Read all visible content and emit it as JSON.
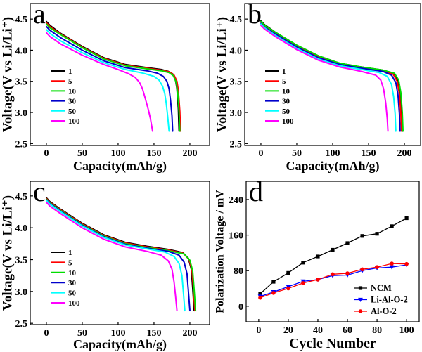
{
  "chart_data": [
    {
      "panel": "a",
      "type": "line",
      "xlabel": "Capacity(mAh/g)",
      "ylabel": "Voltage(V vs Li/Li⁺)",
      "xlim": [
        -22.5,
        227.5
      ],
      "ylim": [
        2.47,
        4.75
      ],
      "xticks": [
        "0",
        "50",
        "100",
        "150",
        "200"
      ],
      "yticks": [
        "2.5",
        "3.0",
        "3.5",
        "4.0",
        "4.5"
      ],
      "grid": false,
      "legend_position": "center-left",
      "series": [
        {
          "name": "1",
          "color": "#000000",
          "x": [
            0,
            5,
            20,
            50,
            80,
            110,
            140,
            160,
            170,
            176,
            180,
            182,
            184,
            185
          ],
          "y": [
            4.46,
            4.4,
            4.27,
            4.06,
            3.88,
            3.77,
            3.72,
            3.69,
            3.66,
            3.62,
            3.52,
            3.38,
            3.05,
            2.7
          ]
        },
        {
          "name": "5",
          "color": "#ff0000",
          "x": [
            0,
            5,
            20,
            50,
            80,
            110,
            140,
            160,
            172,
            178,
            182,
            184,
            186,
            187
          ],
          "y": [
            4.44,
            4.38,
            4.26,
            4.05,
            3.87,
            3.76,
            3.71,
            3.68,
            3.65,
            3.6,
            3.5,
            3.35,
            3.02,
            2.7
          ]
        },
        {
          "name": "10",
          "color": "#00dd00",
          "x": [
            0,
            5,
            20,
            50,
            80,
            110,
            140,
            160,
            171,
            177,
            181,
            183,
            185,
            186
          ],
          "y": [
            4.42,
            4.36,
            4.25,
            4.04,
            3.86,
            3.75,
            3.7,
            3.67,
            3.64,
            3.59,
            3.48,
            3.33,
            3.0,
            2.7
          ]
        },
        {
          "name": "30",
          "color": "#0000cc",
          "x": [
            0,
            5,
            20,
            50,
            80,
            110,
            140,
            155,
            163,
            168,
            171,
            173,
            175,
            176
          ],
          "y": [
            4.38,
            4.32,
            4.2,
            4.0,
            3.83,
            3.72,
            3.67,
            3.63,
            3.58,
            3.5,
            3.38,
            3.2,
            2.95,
            2.7
          ]
        },
        {
          "name": "50",
          "color": "#00ffff",
          "x": [
            0,
            5,
            20,
            50,
            80,
            110,
            135,
            150,
            157,
            162,
            165,
            167,
            169,
            171
          ],
          "y": [
            4.33,
            4.27,
            4.15,
            3.96,
            3.8,
            3.69,
            3.63,
            3.58,
            3.52,
            3.42,
            3.3,
            3.15,
            2.95,
            2.7
          ]
        },
        {
          "name": "100",
          "color": "#ff00ff",
          "x": [
            0,
            5,
            20,
            50,
            80,
            100,
            115,
            124,
            130,
            134,
            138,
            142,
            145,
            148
          ],
          "y": [
            4.28,
            4.22,
            4.1,
            3.92,
            3.77,
            3.69,
            3.62,
            3.56,
            3.48,
            3.38,
            3.22,
            3.05,
            2.9,
            2.7
          ]
        }
      ]
    },
    {
      "panel": "b",
      "type": "line",
      "xlabel": "Capacity(mAh/g)",
      "ylabel": "Voltage(V vs Li/Li⁺)",
      "xlim": [
        -22.5,
        222.5
      ],
      "ylim": [
        2.47,
        4.75
      ],
      "xticks": [
        "0",
        "50",
        "100",
        "150",
        "200"
      ],
      "yticks": [
        "2.5",
        "3.0",
        "3.5",
        "4.0",
        "4.5"
      ],
      "grid": false,
      "legend_position": "center-left",
      "series": [
        {
          "name": "1",
          "color": "#000000",
          "x": [
            0,
            5,
            20,
            50,
            80,
            110,
            140,
            170,
            185,
            191,
            194,
            196,
            197
          ],
          "y": [
            4.47,
            4.41,
            4.29,
            4.08,
            3.91,
            3.79,
            3.73,
            3.68,
            3.63,
            3.52,
            3.32,
            3.0,
            2.7
          ]
        },
        {
          "name": "5",
          "color": "#ff0000",
          "x": [
            0,
            5,
            20,
            50,
            80,
            110,
            140,
            170,
            184,
            190,
            193,
            195,
            196
          ],
          "y": [
            4.45,
            4.39,
            4.28,
            4.07,
            3.9,
            3.78,
            3.72,
            3.67,
            3.62,
            3.5,
            3.3,
            2.98,
            2.7
          ]
        },
        {
          "name": "10",
          "color": "#00dd00",
          "x": [
            0,
            5,
            20,
            50,
            80,
            110,
            140,
            170,
            186,
            192,
            195,
            197,
            198
          ],
          "y": [
            4.46,
            4.4,
            4.29,
            4.08,
            3.91,
            3.79,
            3.73,
            3.68,
            3.63,
            3.52,
            3.32,
            3.0,
            2.7
          ]
        },
        {
          "name": "30",
          "color": "#0000cc",
          "x": [
            0,
            5,
            20,
            50,
            80,
            110,
            140,
            170,
            182,
            188,
            191,
            193,
            194
          ],
          "y": [
            4.43,
            4.37,
            4.26,
            4.05,
            3.88,
            3.77,
            3.71,
            3.66,
            3.6,
            3.48,
            3.28,
            2.98,
            2.7
          ]
        },
        {
          "name": "50",
          "color": "#00ffff",
          "x": [
            0,
            5,
            20,
            50,
            80,
            110,
            140,
            165,
            176,
            182,
            185,
            187,
            188
          ],
          "y": [
            4.42,
            4.36,
            4.24,
            4.03,
            3.86,
            3.75,
            3.69,
            3.64,
            3.58,
            3.45,
            3.25,
            2.98,
            2.7
          ]
        },
        {
          "name": "100",
          "color": "#ff00ff",
          "x": [
            0,
            5,
            20,
            50,
            80,
            110,
            140,
            160,
            167,
            171,
            174,
            176,
            177
          ],
          "y": [
            4.4,
            4.34,
            4.22,
            4.01,
            3.84,
            3.73,
            3.66,
            3.6,
            3.52,
            3.38,
            3.15,
            2.9,
            2.7
          ]
        }
      ]
    },
    {
      "panel": "c",
      "type": "line",
      "xlabel": "Capacity(mAh/g)",
      "ylabel": "Voltage(V vs Li/Li⁺)",
      "xlim": [
        -22.5,
        227.5
      ],
      "ylim": [
        2.48,
        4.73
      ],
      "xticks": [
        "0",
        "50",
        "100",
        "150",
        "200"
      ],
      "yticks": [
        "2.5",
        "3.0",
        "3.5",
        "4.0",
        "4.5"
      ],
      "grid": false,
      "legend_position": "center-left",
      "series": [
        {
          "name": "1",
          "color": "#000000",
          "x": [
            0,
            5,
            20,
            50,
            80,
            110,
            140,
            170,
            190,
            198,
            202,
            204,
            206
          ],
          "y": [
            4.47,
            4.41,
            4.29,
            4.07,
            3.89,
            3.77,
            3.71,
            3.66,
            3.61,
            3.52,
            3.35,
            3.05,
            2.7
          ]
        },
        {
          "name": "5",
          "color": "#ff0000",
          "x": [
            0,
            5,
            20,
            50,
            80,
            110,
            140,
            170,
            191,
            199,
            203,
            205,
            207
          ],
          "y": [
            4.46,
            4.4,
            4.28,
            4.06,
            3.88,
            3.76,
            3.7,
            3.65,
            3.6,
            3.5,
            3.33,
            3.03,
            2.7
          ]
        },
        {
          "name": "10",
          "color": "#00dd00",
          "x": [
            0,
            5,
            20,
            50,
            80,
            110,
            140,
            170,
            192,
            200,
            204,
            206,
            208
          ],
          "y": [
            4.45,
            4.39,
            4.27,
            4.05,
            3.87,
            3.75,
            3.69,
            3.64,
            3.59,
            3.49,
            3.32,
            3.02,
            2.7
          ]
        },
        {
          "name": "30",
          "color": "#0000cc",
          "x": [
            0,
            5,
            20,
            50,
            80,
            110,
            140,
            170,
            185,
            192,
            196,
            198,
            200
          ],
          "y": [
            4.44,
            4.38,
            4.26,
            4.04,
            3.86,
            3.74,
            3.68,
            3.63,
            3.57,
            3.46,
            3.28,
            3.0,
            2.7
          ]
        },
        {
          "name": "50",
          "color": "#00ffff",
          "x": [
            0,
            5,
            20,
            50,
            80,
            110,
            140,
            165,
            178,
            185,
            189,
            191,
            193
          ],
          "y": [
            4.43,
            4.37,
            4.25,
            4.03,
            3.85,
            3.73,
            3.67,
            3.62,
            3.55,
            3.44,
            3.25,
            2.98,
            2.7
          ]
        },
        {
          "name": "100",
          "color": "#ff00ff",
          "x": [
            0,
            5,
            20,
            50,
            80,
            110,
            140,
            160,
            170,
            175,
            178,
            180,
            182
          ],
          "y": [
            4.4,
            4.34,
            4.22,
            4.0,
            3.82,
            3.7,
            3.63,
            3.57,
            3.48,
            3.35,
            3.15,
            2.93,
            2.7
          ]
        }
      ]
    },
    {
      "panel": "d",
      "type": "line",
      "xlabel": "Cycle Number",
      "ylabel": "Polarization Voltage / mV",
      "xlim": [
        -8.5,
        108.5
      ],
      "ylim": [
        -35,
        281
      ],
      "xticks": [
        "0",
        "20",
        "40",
        "60",
        "80",
        "100"
      ],
      "yticks": [
        "0",
        "80",
        "160",
        "240"
      ],
      "grid": false,
      "legend_position": "bottom-right",
      "series": [
        {
          "name": "NCM",
          "color": "#000000",
          "x": [
            1,
            10,
            20,
            30,
            40,
            50,
            60,
            70,
            80,
            90,
            100
          ],
          "y": [
            28,
            55,
            75,
            98,
            112,
            127,
            142,
            158,
            163,
            180,
            198
          ]
        },
        {
          "name": "Li-Al-O-2",
          "color": "#0000ff",
          "x": [
            1,
            10,
            20,
            30,
            40,
            50,
            60,
            70,
            80,
            90,
            100
          ],
          "y": [
            22,
            32,
            44,
            56,
            60,
            69,
            70,
            80,
            86,
            88,
            93
          ]
        },
        {
          "name": "Al-O-2",
          "color": "#ff0000",
          "x": [
            1,
            10,
            20,
            30,
            40,
            50,
            60,
            70,
            80,
            90,
            100
          ],
          "y": [
            19,
            30,
            40,
            52,
            60,
            72,
            74,
            83,
            88,
            96,
            95
          ]
        }
      ]
    }
  ]
}
